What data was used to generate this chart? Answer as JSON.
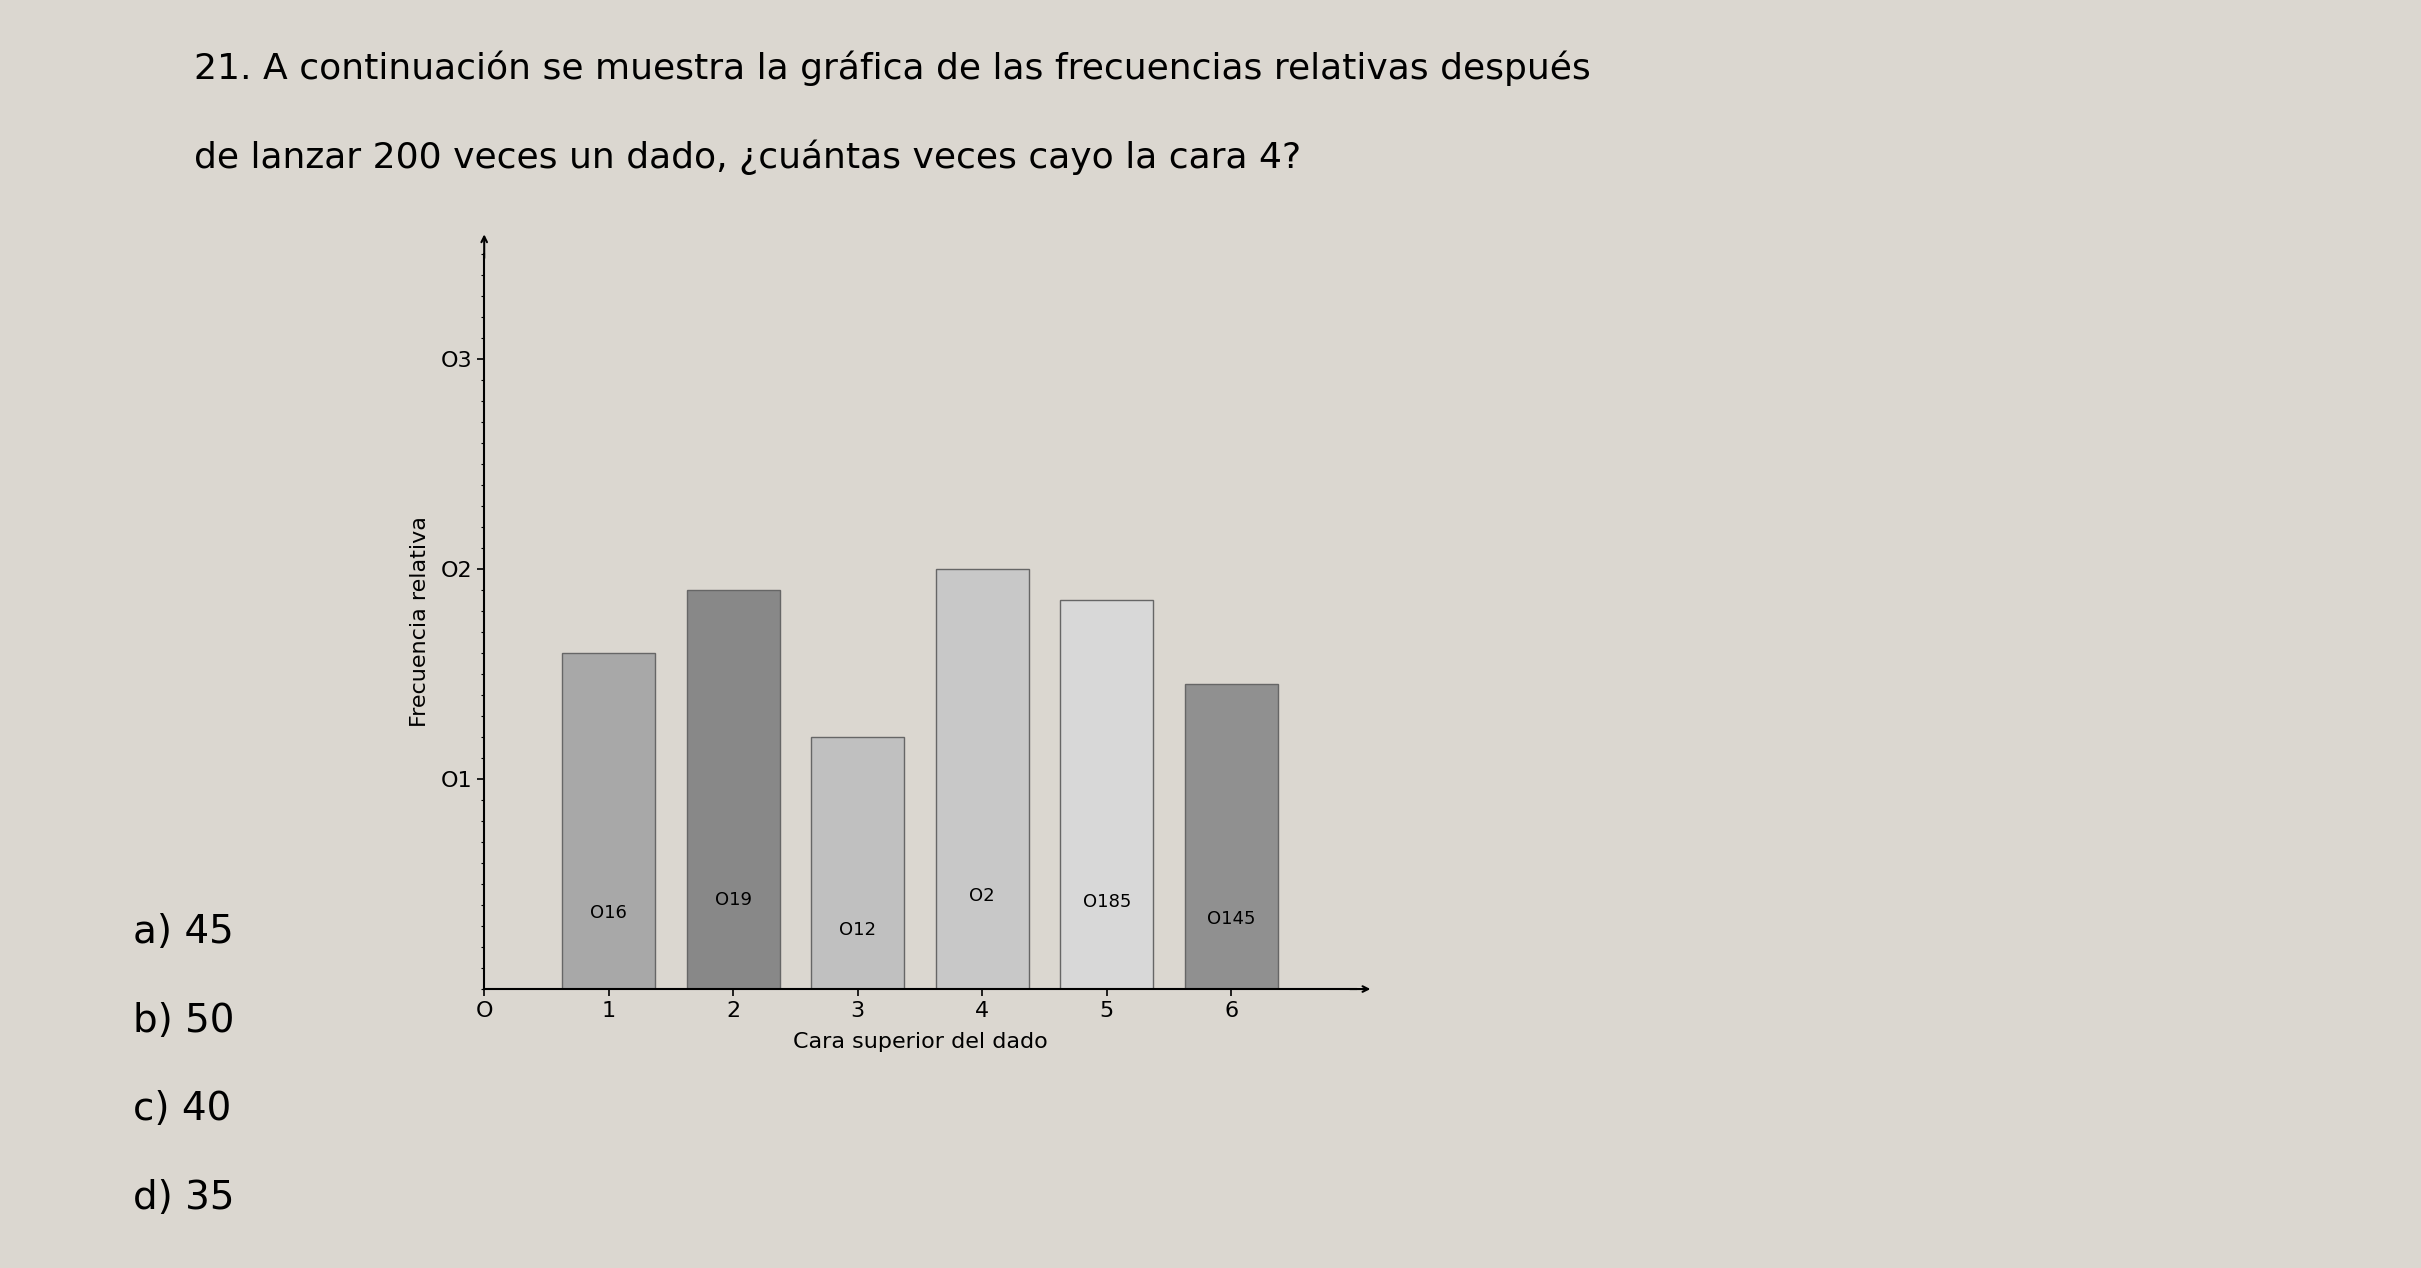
{
  "title_line1": "21. A continuación se muestra la gráfica de las frecuencias relativas después",
  "title_line2": "de lanzar 200 veces un dado, ¿cuántas veces cayo la cara 4?",
  "categories": [
    1,
    2,
    3,
    4,
    5,
    6
  ],
  "values": [
    0.16,
    0.19,
    0.12,
    0.2,
    0.185,
    0.145
  ],
  "bar_labels": [
    "O16",
    "O19",
    "O12",
    "O2",
    "O185",
    "O145"
  ],
  "bar_colors": [
    "#a8a8a8",
    "#888888",
    "#c0c0c0",
    "#c8c8c8",
    "#d8d8d8",
    "#909090"
  ],
  "xlabel": "Cara superior del dado",
  "ylabel": "Frecuencia relativa",
  "yticks": [
    0.1,
    0.2,
    0.3
  ],
  "ytick_labels": [
    "O1",
    "O2",
    "O3"
  ],
  "xlim": [
    0.0,
    7.0
  ],
  "ylim": [
    0,
    0.35
  ],
  "answer_a": "a) 45",
  "answer_b": "b) 50",
  "answer_c": "c) 40",
  "answer_d": "d) 35",
  "bg_color": "#dbd7d0",
  "bar_edge_color": "#666666",
  "bar_width": 0.75
}
